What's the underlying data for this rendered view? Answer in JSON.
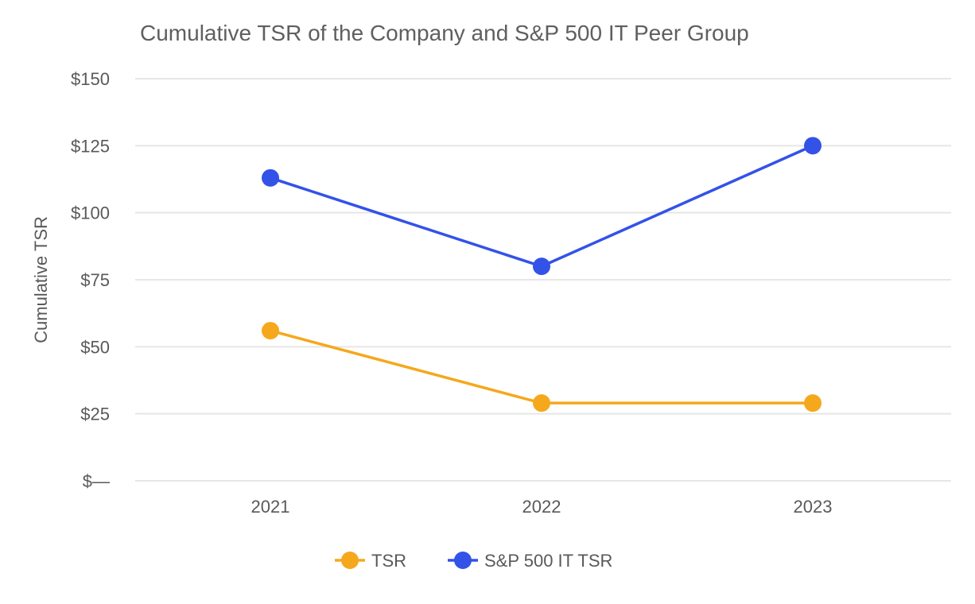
{
  "chart_data": {
    "type": "line",
    "title": "Cumulative TSR of the Company and S&P 500 IT Peer Group",
    "ylabel": "Cumulative TSR",
    "xlabel": "",
    "categories": [
      "2021",
      "2022",
      "2023"
    ],
    "ylim": [
      0,
      150
    ],
    "yticks": [
      0,
      25,
      50,
      75,
      100,
      125,
      150
    ],
    "ytick_labels": [
      "$—",
      "$25",
      "$50",
      "$75",
      "$100",
      "$125",
      "$150"
    ],
    "grid": true,
    "legend_position": "bottom",
    "series": [
      {
        "name": "TSR",
        "values": [
          56,
          29,
          29
        ],
        "color": "#f5a81c"
      },
      {
        "name": "S&P 500 IT TSR",
        "values": [
          113,
          80,
          125
        ],
        "color": "#3352e8"
      }
    ]
  },
  "colors": {
    "grid": "#e6e6e6",
    "text": "#595959"
  }
}
